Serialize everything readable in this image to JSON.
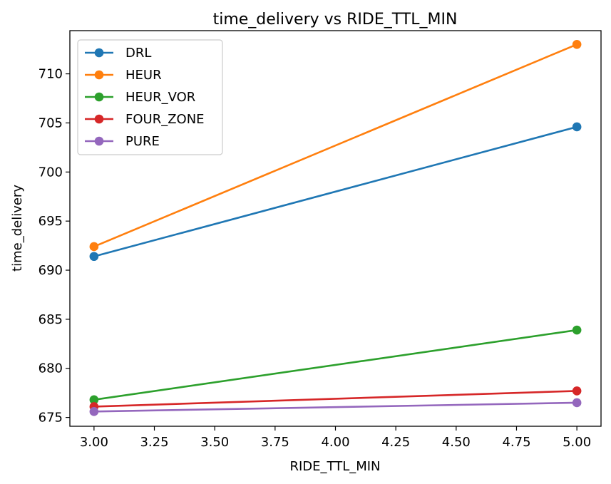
{
  "chart_data": {
    "type": "line",
    "title": "time_delivery vs RIDE_TTL_MIN",
    "xlabel": "RIDE_TTL_MIN",
    "ylabel": "time_delivery",
    "x": [
      3.0,
      5.0
    ],
    "xlim": [
      2.9,
      5.1
    ],
    "ylim": [
      674.1,
      714.4
    ],
    "xticks": [
      3.0,
      3.25,
      3.5,
      3.75,
      4.0,
      4.25,
      4.5,
      4.75,
      5.0
    ],
    "xtick_labels": [
      "3.00",
      "3.25",
      "3.50",
      "3.75",
      "4.00",
      "4.25",
      "4.50",
      "4.75",
      "5.00"
    ],
    "yticks": [
      675,
      680,
      685,
      690,
      695,
      700,
      705,
      710
    ],
    "ytick_labels": [
      "675",
      "680",
      "685",
      "690",
      "695",
      "700",
      "705",
      "710"
    ],
    "grid": false,
    "legend_position": "top-left",
    "series": [
      {
        "name": "DRL",
        "values": [
          691.4,
          704.6
        ],
        "color": "#1f77b4"
      },
      {
        "name": "HEUR",
        "values": [
          692.4,
          713.0
        ],
        "color": "#ff7f0e"
      },
      {
        "name": "HEUR_VOR",
        "values": [
          676.8,
          683.9
        ],
        "color": "#2ca02c"
      },
      {
        "name": "FOUR_ZONE",
        "values": [
          676.1,
          677.7
        ],
        "color": "#d62728"
      },
      {
        "name": "PURE",
        "values": [
          675.6,
          676.5
        ],
        "color": "#9467bd"
      }
    ]
  }
}
